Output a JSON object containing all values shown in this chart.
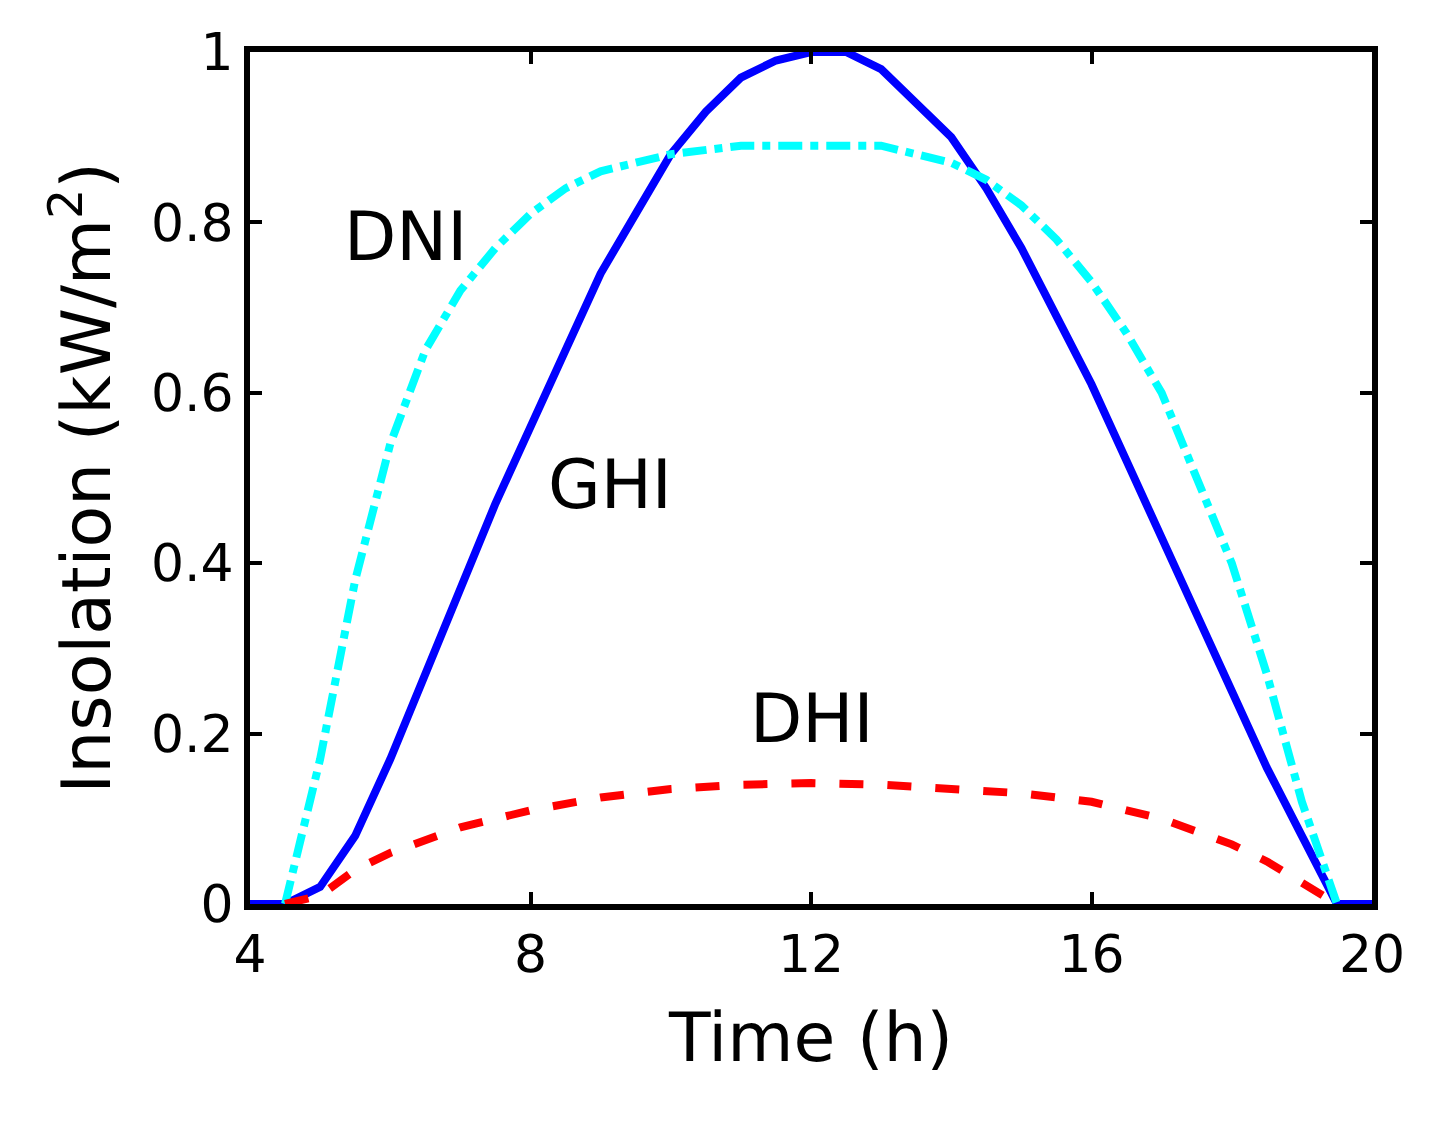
{
  "chart_data": {
    "type": "line",
    "xlabel": "Time (h)",
    "ylabel": "Insolation (kW/m$^{2}$)",
    "xlim": [
      4,
      20
    ],
    "xticks": [
      4,
      8,
      12,
      16,
      20
    ],
    "ylim": [
      0,
      1
    ],
    "yticks": [
      0,
      0.2,
      0.4,
      0.6,
      0.8,
      1
    ],
    "legend": false,
    "marker": "none",
    "series": [
      {
        "name": "GHI",
        "color": "#0000ff",
        "line_style": "solid",
        "x": [
          4,
          4.5,
          5,
          5.5,
          6,
          6.5,
          7,
          7.5,
          8,
          8.5,
          9,
          9.5,
          10,
          10.5,
          11,
          11.5,
          12,
          12.5,
          13,
          13.5,
          14,
          14.5,
          15,
          15.5,
          16,
          16.5,
          17,
          17.5,
          18,
          18.5,
          19,
          19.5,
          20
        ],
        "values": [
          0,
          0,
          0.02,
          0.08,
          0.17,
          0.27,
          0.37,
          0.47,
          0.56,
          0.65,
          0.74,
          0.81,
          0.88,
          0.93,
          0.97,
          0.99,
          1.0,
          1.0,
          0.98,
          0.94,
          0.9,
          0.84,
          0.77,
          0.69,
          0.61,
          0.52,
          0.43,
          0.34,
          0.25,
          0.16,
          0.08,
          0,
          0
        ]
      },
      {
        "name": "DNI",
        "color": "#00ffff",
        "line_style": "dashdot",
        "x": [
          4.5,
          5,
          5.5,
          6,
          6.5,
          7,
          7.5,
          8,
          8.5,
          9,
          10,
          11,
          12,
          13,
          14,
          14.5,
          15,
          15.5,
          16,
          16.5,
          17,
          17.5,
          18,
          18.5,
          19,
          19.5
        ],
        "values": [
          0,
          0.17,
          0.38,
          0.54,
          0.65,
          0.72,
          0.77,
          0.81,
          0.84,
          0.86,
          0.88,
          0.89,
          0.89,
          0.89,
          0.87,
          0.85,
          0.82,
          0.78,
          0.73,
          0.67,
          0.6,
          0.5,
          0.4,
          0.27,
          0.12,
          0
        ]
      },
      {
        "name": "DHI",
        "color": "#ff0000",
        "line_style": "dashed",
        "x": [
          4.5,
          5,
          5.5,
          6,
          7,
          8,
          9,
          10,
          11,
          12,
          13,
          14,
          15,
          16,
          17,
          18,
          18.5,
          19,
          19.5
        ],
        "values": [
          0,
          0.01,
          0.04,
          0.06,
          0.09,
          0.11,
          0.125,
          0.135,
          0.14,
          0.142,
          0.14,
          0.135,
          0.13,
          0.12,
          0.1,
          0.07,
          0.05,
          0.025,
          0
        ]
      }
    ]
  }
}
